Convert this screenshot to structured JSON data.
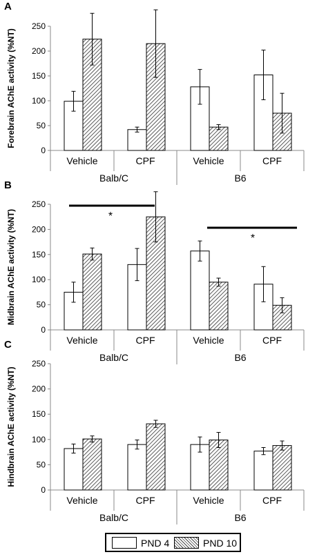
{
  "legend": {
    "items": [
      "PND 4",
      "PND 10"
    ]
  },
  "colors": {
    "bar_stroke": "#000000",
    "pnd4_fill": "#ffffff",
    "pnd10_fill": "hatched"
  },
  "chart_data": [
    {
      "panel": "A",
      "type": "bar",
      "ylabel": "Forebrain AChE activity (%NT)",
      "ylim": [
        0,
        250
      ],
      "yticks": [
        0,
        50,
        100,
        150,
        200,
        250
      ],
      "categories": [
        "Vehicle",
        "CPF",
        "Vehicle",
        "CPF"
      ],
      "groups": [
        "Balb/C",
        "B6"
      ],
      "series": [
        {
          "name": "PND 4",
          "values": [
            99,
            42,
            128,
            152
          ],
          "errors": [
            20,
            5,
            35,
            50
          ]
        },
        {
          "name": "PND 10",
          "values": [
            224,
            215,
            47,
            75
          ],
          "errors": [
            52,
            68,
            5,
            40
          ]
        }
      ],
      "significance": []
    },
    {
      "panel": "B",
      "type": "bar",
      "ylabel": "Midbrain AChE activity (%NT)",
      "ylim": [
        0,
        250
      ],
      "yticks": [
        0,
        50,
        100,
        150,
        200,
        250
      ],
      "categories": [
        "Vehicle",
        "CPF",
        "Vehicle",
        "CPF"
      ],
      "groups": [
        "Balb/C",
        "B6"
      ],
      "series": [
        {
          "name": "PND 4",
          "values": [
            75,
            130,
            157,
            91
          ],
          "errors": [
            20,
            32,
            20,
            35
          ]
        },
        {
          "name": "PND 10",
          "values": [
            151,
            225,
            95,
            49
          ],
          "errors": [
            12,
            50,
            8,
            15
          ]
        }
      ],
      "significance": [
        {
          "label": "*",
          "group": "Balb/C"
        },
        {
          "label": "*",
          "group": "B6"
        }
      ]
    },
    {
      "panel": "C",
      "type": "bar",
      "ylabel": "Hindbrain AChE activity (%NT)",
      "ylim": [
        0,
        250
      ],
      "yticks": [
        0,
        50,
        100,
        150,
        200,
        250
      ],
      "categories": [
        "Vehicle",
        "CPF",
        "Vehicle",
        "CPF"
      ],
      "groups": [
        "Balb/C",
        "B6"
      ],
      "series": [
        {
          "name": "PND 4",
          "values": [
            82,
            90,
            90,
            77
          ],
          "errors": [
            9,
            9,
            15,
            7
          ]
        },
        {
          "name": "PND 10",
          "values": [
            101,
            131,
            99,
            88
          ],
          "errors": [
            6,
            7,
            15,
            9
          ]
        }
      ],
      "significance": []
    }
  ]
}
